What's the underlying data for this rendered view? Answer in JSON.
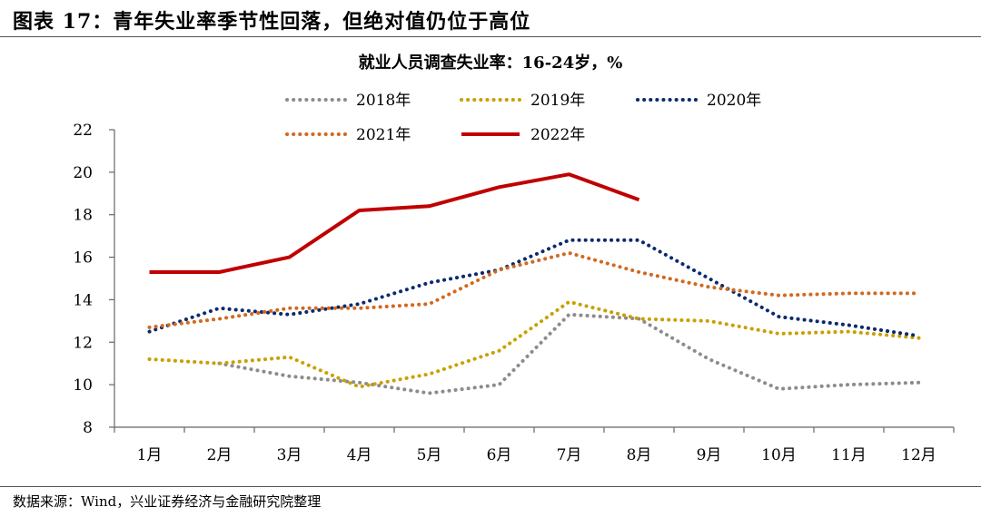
{
  "figure_title": "图表 17：青年失业率季节性回落，但绝对值仍位于高位",
  "source": "数据来源：Wind，兴业证券经济与金融研究院整理",
  "chart_data": {
    "type": "line",
    "title": "就业人员调查失业率：16-24岁，%",
    "xlabel": "",
    "ylabel": "",
    "categories": [
      "1月",
      "2月",
      "3月",
      "4月",
      "5月",
      "6月",
      "7月",
      "8月",
      "9月",
      "10月",
      "11月",
      "12月"
    ],
    "ylim": [
      8,
      22
    ],
    "yticks": [
      8,
      10,
      12,
      14,
      16,
      18,
      20,
      22
    ],
    "grid": false,
    "legend_position": "top",
    "series": [
      {
        "name": "2018年",
        "style": "dotted",
        "color": "#8c8c8c",
        "values": [
          null,
          11.0,
          10.4,
          10.1,
          9.6,
          10.0,
          13.3,
          13.1,
          11.2,
          9.8,
          10.0,
          10.1
        ]
      },
      {
        "name": "2019年",
        "style": "dotted",
        "color": "#c9a000",
        "values": [
          11.2,
          11.0,
          11.3,
          9.9,
          10.5,
          11.6,
          13.9,
          13.1,
          13.0,
          12.4,
          12.5,
          12.2
        ]
      },
      {
        "name": "2020年",
        "style": "dotted",
        "color": "#0c2a6e",
        "values": [
          12.5,
          13.6,
          13.3,
          13.8,
          14.8,
          15.4,
          16.8,
          16.8,
          15.0,
          13.2,
          12.8,
          12.3
        ]
      },
      {
        "name": "2021年",
        "style": "dotted",
        "color": "#d2691e",
        "values": [
          12.7,
          13.1,
          13.6,
          13.6,
          13.8,
          15.4,
          16.2,
          15.3,
          14.6,
          14.2,
          14.3,
          14.3
        ]
      },
      {
        "name": "2022年",
        "style": "solid",
        "color": "#c00000",
        "values": [
          15.3,
          15.3,
          16.0,
          18.2,
          18.4,
          19.3,
          19.9,
          18.7,
          null,
          null,
          null,
          null
        ]
      }
    ]
  }
}
